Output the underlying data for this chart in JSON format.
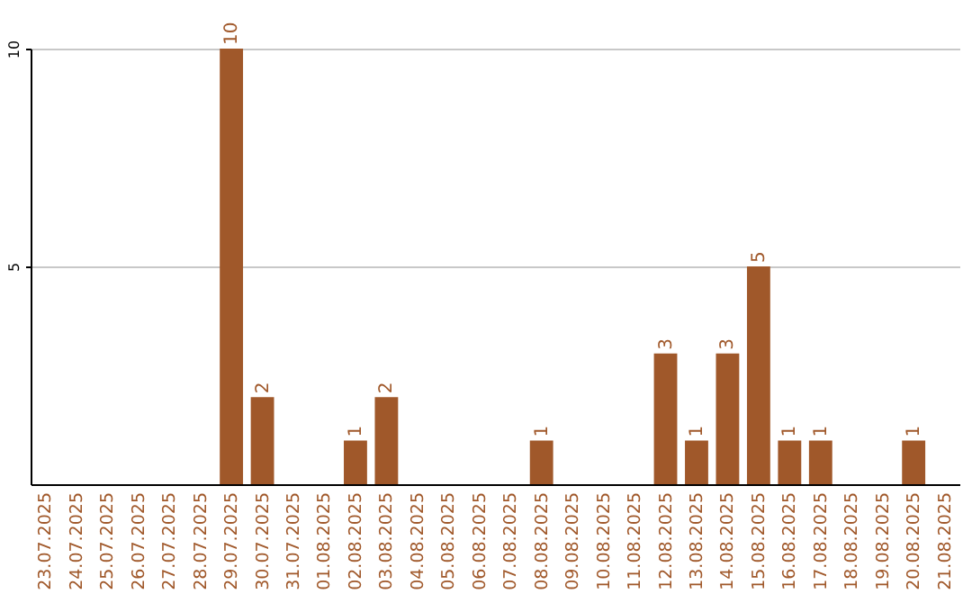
{
  "chart_data": {
    "type": "bar",
    "categories": [
      "23.07.2025",
      "24.07.2025",
      "25.07.2025",
      "26.07.2025",
      "27.07.2025",
      "28.07.2025",
      "29.07.2025",
      "30.07.2025",
      "31.07.2025",
      "01.08.2025",
      "02.08.2025",
      "03.08.2025",
      "04.08.2025",
      "05.08.2025",
      "06.08.2025",
      "07.08.2025",
      "08.08.2025",
      "09.08.2025",
      "10.08.2025",
      "11.08.2025",
      "12.08.2025",
      "13.08.2025",
      "14.08.2025",
      "15.08.2025",
      "16.08.2025",
      "17.08.2025",
      "18.08.2025",
      "19.08.2025",
      "20.08.2025",
      "21.08.2025"
    ],
    "values": [
      0,
      0,
      0,
      0,
      0,
      0,
      10,
      2,
      0,
      0,
      1,
      2,
      0,
      0,
      0,
      0,
      1,
      0,
      0,
      0,
      3,
      1,
      3,
      5,
      1,
      1,
      0,
      0,
      1,
      0
    ],
    "value_labels": [
      null,
      null,
      null,
      null,
      null,
      null,
      "10",
      "2",
      null,
      null,
      "1",
      "2",
      null,
      null,
      null,
      null,
      "1",
      null,
      null,
      null,
      "3",
      "1",
      "3",
      "5",
      "1",
      "1",
      null,
      null,
      "1",
      null
    ],
    "color": "#a0582a",
    "ylim": [
      0,
      10
    ],
    "yticks": [
      5,
      10
    ],
    "grid": "y"
  }
}
